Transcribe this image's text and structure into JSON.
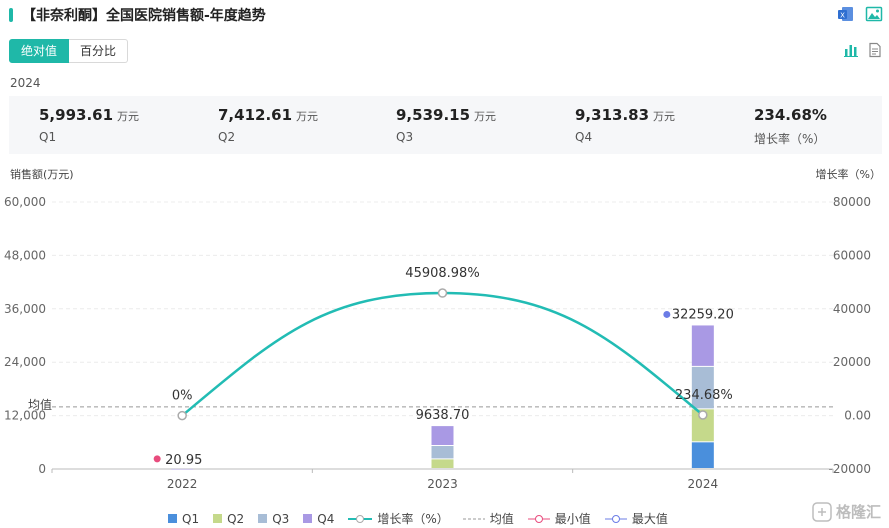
{
  "header": {
    "title": "【非奈利酮】全国医院销售额-年度趋势",
    "icons": [
      "excel-export-icon",
      "image-export-icon"
    ]
  },
  "tabs": [
    {
      "label": "绝对值",
      "active": true
    },
    {
      "label": "百分比",
      "active": false
    }
  ],
  "view_icons": [
    "bar-chart-icon",
    "document-icon"
  ],
  "summary": {
    "year": "2024",
    "stats": [
      {
        "value": "5,993.61",
        "unit": "万元",
        "name": "Q1"
      },
      {
        "value": "7,412.61",
        "unit": "万元",
        "name": "Q2"
      },
      {
        "value": "9,539.15",
        "unit": "万元",
        "name": "Q3"
      },
      {
        "value": "9,313.83",
        "unit": "万元",
        "name": "Q4"
      },
      {
        "value": "234.68%",
        "unit": "",
        "name": "增长率（%）"
      }
    ]
  },
  "chart_data": {
    "type": "bar",
    "stacked": true,
    "categories": [
      "2022",
      "2023",
      "2024"
    ],
    "series": [
      {
        "name": "Q1",
        "color": "#4a8fdc",
        "values": [
          0,
          0,
          5993.61
        ]
      },
      {
        "name": "Q2",
        "color": "#c5d98b",
        "values": [
          0,
          2160,
          7412.61
        ]
      },
      {
        "name": "Q3",
        "color": "#a8bdd6",
        "values": [
          0,
          3010,
          9539.15
        ]
      },
      {
        "name": "Q4",
        "color": "#a999e4",
        "values": [
          20.95,
          4468.7,
          9313.83
        ]
      }
    ],
    "totals": [
      "20.95",
      "9638.70",
      "32259.20"
    ],
    "line": {
      "name": "增长率（%）",
      "color": "#22bcb4",
      "values": [
        0,
        45908.98,
        234.68
      ],
      "labels": [
        "0%",
        "45908.98%",
        "234.68%"
      ]
    },
    "average": {
      "label": "均值",
      "value": 13972.95
    },
    "min_marker": {
      "category": "2022",
      "value": 20.95,
      "color": "#e84c7d"
    },
    "max_marker": {
      "category": "2024",
      "value": 32259.2,
      "color": "#6b7ce6"
    },
    "y_left": {
      "label": "销售额(万元)",
      "ticks": [
        "0",
        "12,000",
        "24,000",
        "36,000",
        "48,000",
        "60,000"
      ],
      "range": [
        0,
        60000
      ]
    },
    "y_right": {
      "label": "增长率（%）",
      "ticks": [
        "-20000",
        "0.00",
        "20000",
        "40000",
        "60000",
        "80000"
      ],
      "range": [
        -20000,
        80000
      ]
    },
    "legend": {
      "items": [
        "Q1",
        "Q2",
        "Q3",
        "Q4",
        "增长率（%）",
        "均值",
        "最小值",
        "最大值"
      ],
      "position": "bottom"
    },
    "grid": true
  },
  "watermark": {
    "text": "格隆汇"
  }
}
